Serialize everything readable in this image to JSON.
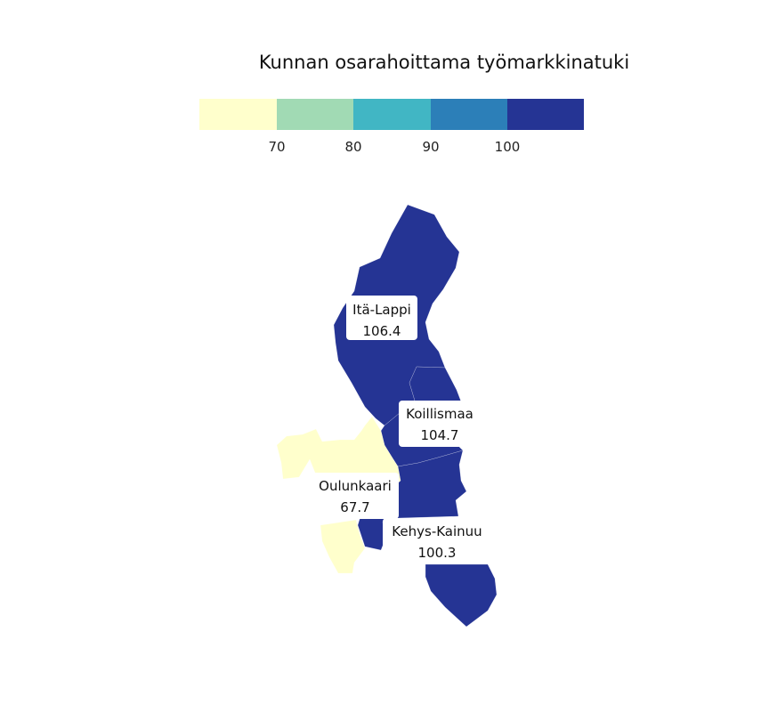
{
  "chart_data": {
    "type": "choropleth",
    "title": "Kunnan osarahoittama työmarkkinatuki",
    "legend": {
      "placement": "top",
      "ticks": [
        70,
        80,
        90,
        100
      ],
      "colors": [
        "#ffffcc",
        "#a1dab4",
        "#41b6c4",
        "#2c7fb8",
        "#253494"
      ]
    },
    "regions": [
      {
        "name": "Itä-Lappi",
        "value": 106.4
      },
      {
        "name": "Koillismaa",
        "value": 104.7
      },
      {
        "name": "Oulunkaari",
        "value": 67.7
      },
      {
        "name": "Kehys-Kainuu",
        "value": 100.3
      }
    ]
  }
}
